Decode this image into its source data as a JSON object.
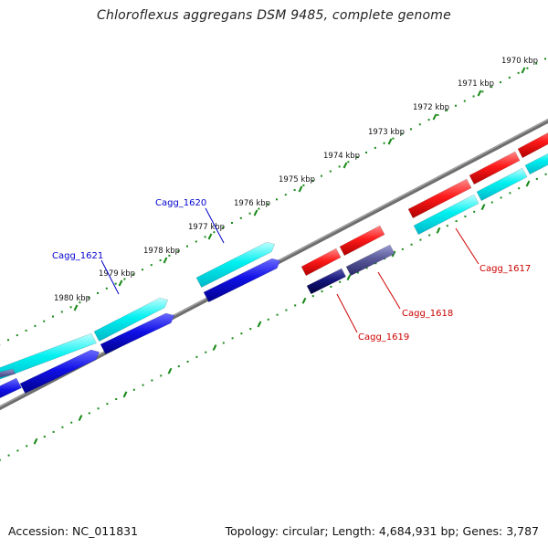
{
  "title": "Chloroflexus aggregans DSM 9485, complete genome",
  "footer": {
    "accession": "Accession: NC_011831",
    "summary": "Topology: circular; Length: 4,684,931 bp; Genes: 3,787"
  },
  "ticks": [
    "1970 kbp",
    "1971 kbp",
    "1972 kbp",
    "1973 kbp",
    "1974 kbp",
    "1975 kbp",
    "1976 kbp",
    "1977 kbp",
    "1978 kbp",
    "1979 kbp",
    "1980 kbp"
  ],
  "genes": [
    {
      "id": "cagg-1617",
      "name": "Cagg_1617",
      "color": "#cc0000"
    },
    {
      "id": "cagg-1618",
      "name": "Cagg_1618",
      "color": "#cc0000"
    },
    {
      "id": "cagg-1619",
      "name": "Cagg_1619",
      "color": "#cc0000"
    },
    {
      "id": "cagg-1620",
      "name": "Cagg_1620",
      "color": "#0000cc"
    },
    {
      "id": "cagg-1621",
      "name": "Cagg_1621",
      "color": "#0000cc"
    }
  ],
  "colors": {
    "backbone": "#7f7f7f",
    "tick": "#1a8a1a",
    "forward_gene": "#ff1a1a",
    "forward_cds": "#00f0f0",
    "reverse_gene": "#1010e6",
    "reverse_cds_dark": "#5a5a9a"
  }
}
